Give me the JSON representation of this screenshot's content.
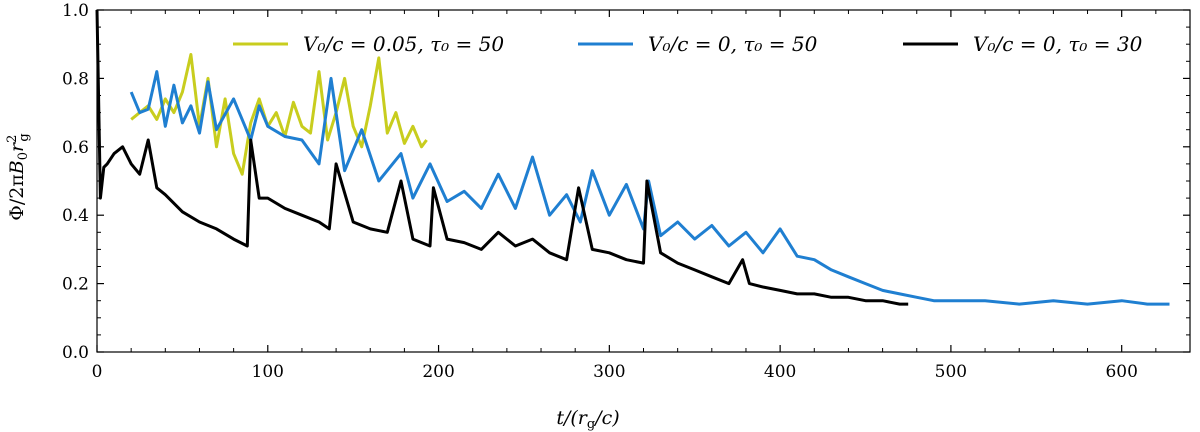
{
  "chart_data": {
    "type": "line",
    "title": "",
    "xlabel": "t/(r_g/c)",
    "ylabel": "Φ/2πB₀r_g²",
    "xlim": [
      0,
      640
    ],
    "ylim": [
      0.0,
      1.0
    ],
    "xticks": [
      0,
      100,
      200,
      300,
      400,
      500,
      600
    ],
    "yticks": [
      0.0,
      0.2,
      0.4,
      0.6,
      0.8,
      1.0
    ],
    "xtick_labels": [
      "0",
      "100",
      "200",
      "300",
      "400",
      "500",
      "600"
    ],
    "ytick_labels": [
      "0.0",
      "0.2",
      "0.4",
      "0.6",
      "0.8",
      "1.0"
    ],
    "grid": false,
    "legend_position": "top",
    "series": [
      {
        "name": "V₀/c = 0.05, τ₀ = 50",
        "color": "#c8cd1e",
        "x": [
          20,
          25,
          30,
          35,
          40,
          45,
          50,
          55,
          60,
          65,
          70,
          75,
          80,
          85,
          90,
          95,
          100,
          105,
          110,
          115,
          120,
          125,
          130,
          135,
          140,
          145,
          150,
          155,
          160,
          165,
          170,
          175,
          180,
          185,
          190,
          193
        ],
        "y": [
          0.68,
          0.7,
          0.72,
          0.68,
          0.74,
          0.7,
          0.76,
          0.87,
          0.66,
          0.8,
          0.6,
          0.74,
          0.58,
          0.52,
          0.67,
          0.74,
          0.66,
          0.7,
          0.63,
          0.73,
          0.66,
          0.64,
          0.82,
          0.62,
          0.7,
          0.8,
          0.66,
          0.6,
          0.72,
          0.86,
          0.64,
          0.7,
          0.61,
          0.66,
          0.6,
          0.62
        ]
      },
      {
        "name": "V₀/c = 0, τ₀ = 50",
        "color": "#1f7fd1",
        "x": [
          20,
          25,
          30,
          35,
          40,
          45,
          50,
          55,
          60,
          65,
          70,
          80,
          90,
          95,
          100,
          110,
          120,
          130,
          137,
          145,
          155,
          165,
          178,
          185,
          195,
          205,
          215,
          225,
          235,
          245,
          255,
          265,
          275,
          283,
          290,
          300,
          310,
          320,
          323,
          330,
          340,
          350,
          360,
          370,
          380,
          390,
          400,
          410,
          420,
          430,
          440,
          450,
          460,
          470,
          480,
          490,
          500,
          520,
          540,
          560,
          580,
          600,
          615,
          628
        ],
        "y": [
          0.76,
          0.7,
          0.71,
          0.82,
          0.66,
          0.78,
          0.67,
          0.72,
          0.64,
          0.79,
          0.65,
          0.74,
          0.62,
          0.72,
          0.66,
          0.63,
          0.62,
          0.55,
          0.8,
          0.53,
          0.65,
          0.5,
          0.58,
          0.45,
          0.55,
          0.44,
          0.47,
          0.42,
          0.52,
          0.42,
          0.57,
          0.4,
          0.46,
          0.38,
          0.53,
          0.4,
          0.49,
          0.36,
          0.5,
          0.34,
          0.38,
          0.33,
          0.37,
          0.31,
          0.35,
          0.29,
          0.36,
          0.28,
          0.27,
          0.24,
          0.22,
          0.2,
          0.18,
          0.17,
          0.16,
          0.15,
          0.15,
          0.15,
          0.14,
          0.15,
          0.14,
          0.15,
          0.14,
          0.14
        ]
      },
      {
        "name": "V₀/c = 0, τ₀ = 30",
        "color": "#000000",
        "x": [
          0,
          2,
          4,
          6,
          10,
          15,
          20,
          25,
          30,
          35,
          40,
          50,
          60,
          70,
          80,
          88,
          90,
          95,
          100,
          110,
          120,
          130,
          136,
          140,
          150,
          160,
          170,
          178,
          185,
          195,
          197,
          205,
          215,
          225,
          235,
          245,
          255,
          265,
          275,
          282,
          290,
          300,
          310,
          320,
          322,
          330,
          340,
          350,
          360,
          370,
          378,
          382,
          390,
          400,
          410,
          420,
          430,
          440,
          450,
          460,
          470,
          475
        ],
        "y": [
          1.0,
          0.45,
          0.54,
          0.55,
          0.58,
          0.6,
          0.55,
          0.52,
          0.62,
          0.48,
          0.46,
          0.41,
          0.38,
          0.36,
          0.33,
          0.31,
          0.62,
          0.45,
          0.45,
          0.42,
          0.4,
          0.38,
          0.36,
          0.55,
          0.38,
          0.36,
          0.35,
          0.5,
          0.33,
          0.31,
          0.48,
          0.33,
          0.32,
          0.3,
          0.35,
          0.31,
          0.33,
          0.29,
          0.27,
          0.48,
          0.3,
          0.29,
          0.27,
          0.26,
          0.5,
          0.29,
          0.26,
          0.24,
          0.22,
          0.2,
          0.27,
          0.2,
          0.19,
          0.18,
          0.17,
          0.17,
          0.16,
          0.16,
          0.15,
          0.15,
          0.14,
          0.14
        ]
      }
    ]
  }
}
